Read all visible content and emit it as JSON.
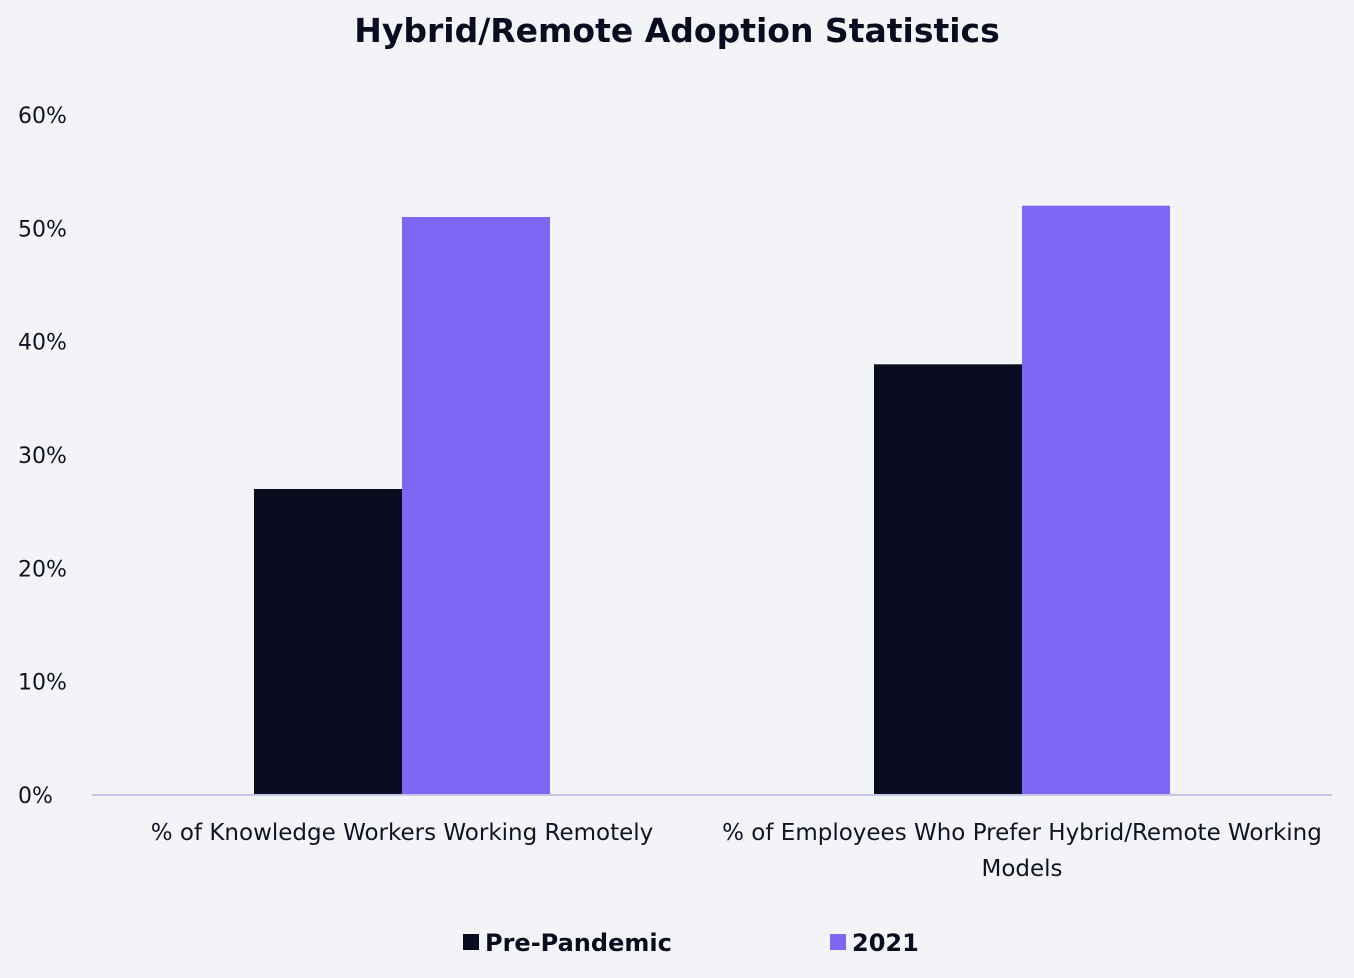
{
  "chart_data": {
    "type": "bar",
    "title": "Hybrid/Remote Adoption Statistics",
    "categories": [
      "% of Knowledge Workers Working Remotely",
      "% of Employees Who Prefer Hybrid/Remote Working Models"
    ],
    "series": [
      {
        "name": "Pre-Pandemic",
        "values": [
          27,
          38
        ],
        "color": "#0b0c20"
      },
      {
        "name": "2021",
        "values": [
          51,
          52
        ],
        "color": "#7d68f6"
      }
    ],
    "y_ticks": [
      "0%",
      "10%",
      "20%",
      "30%",
      "40%",
      "50%",
      "60%"
    ],
    "ylim": [
      0,
      60
    ],
    "xlabel": "",
    "ylabel": "",
    "grid": false,
    "legend": "bottom-center"
  }
}
